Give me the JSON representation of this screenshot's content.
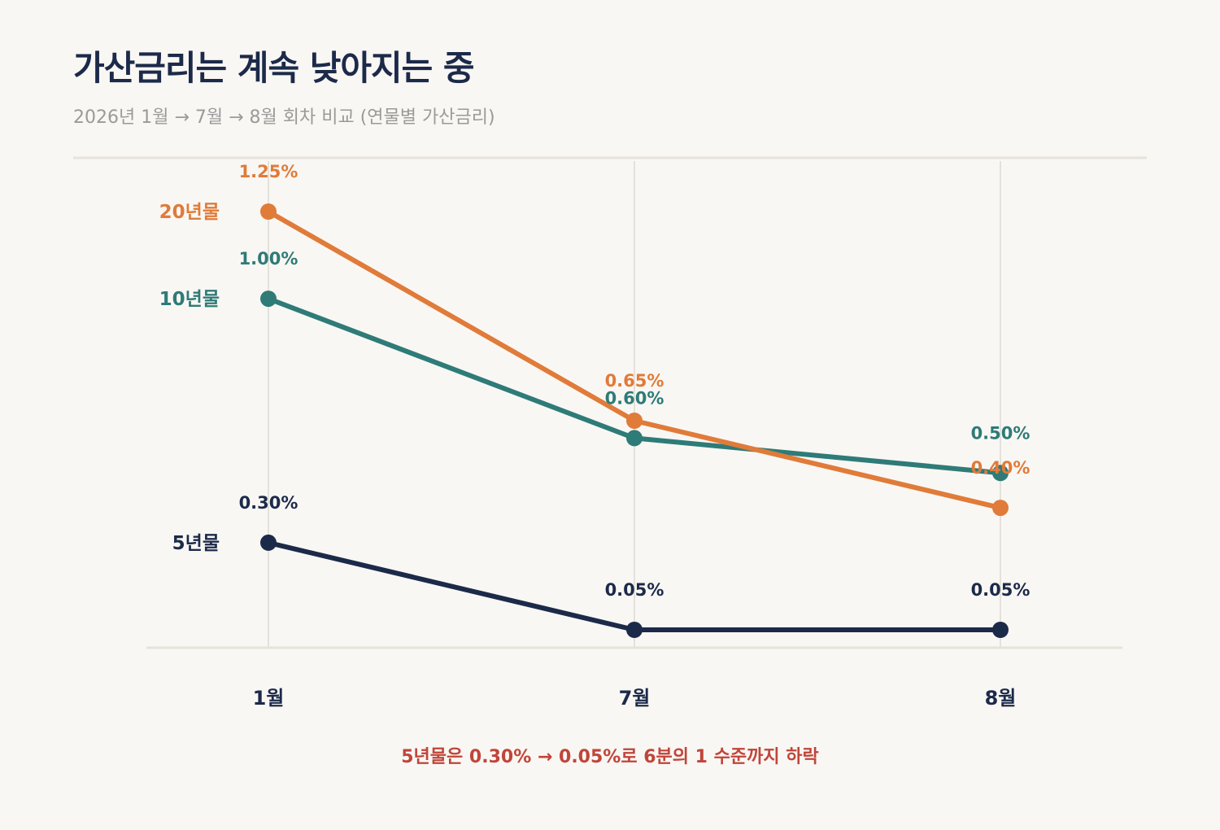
{
  "header": {
    "title": "가산금리는 계속 낮아지는 중",
    "subtitle": "2026년 1월 → 7월 → 8월 회차 비교 (연물별 가산금리)"
  },
  "callout": "5년물은 0.30% → 0.05%로 6분의 1 수준까지 하락",
  "chart_data": {
    "type": "line",
    "title": "가산금리는 계속 낮아지는 중",
    "subtitle": "2026년 1월 → 7월 → 8월 회차 비교 (연물별 가산금리)",
    "categories": [
      "1월",
      "7월",
      "8월"
    ],
    "ylim": [
      0,
      1.4
    ],
    "grid": "vertical",
    "legend": "inline-left",
    "series": [
      {
        "name": "20년물",
        "color": "#e07b39",
        "values": [
          1.25,
          0.65,
          0.4
        ],
        "labels": [
          "1.25%",
          "0.65%",
          "0.40%"
        ]
      },
      {
        "name": "10년물",
        "color": "#2e7b78",
        "values": [
          1.0,
          0.6,
          0.5
        ],
        "labels": [
          "1.00%",
          "0.60%",
          "0.50%"
        ]
      },
      {
        "name": "5년물",
        "color": "#1c2a4a",
        "values": [
          0.3,
          0.05,
          0.05
        ],
        "labels": [
          "0.30%",
          "0.05%",
          "0.05%"
        ]
      }
    ]
  }
}
